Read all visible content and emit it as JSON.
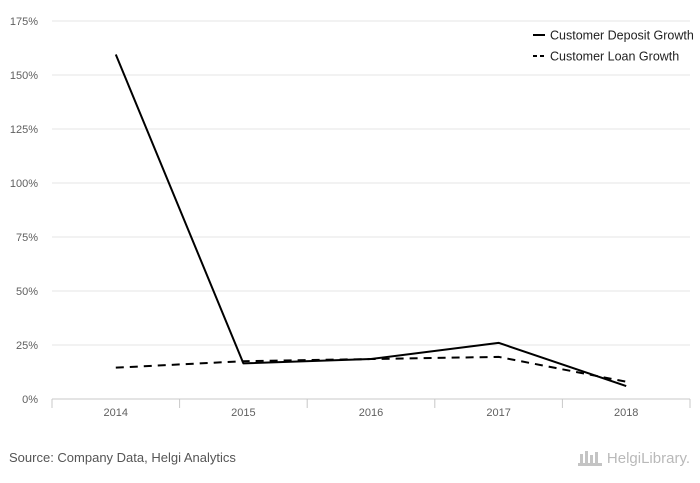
{
  "chart_data": {
    "type": "line",
    "title": "",
    "xlabel": "",
    "ylabel": "",
    "categories": [
      "2014",
      "2015",
      "2016",
      "2017",
      "2018"
    ],
    "y_ticks": [
      "0%",
      "25%",
      "50%",
      "75%",
      "100%",
      "125%",
      "150%",
      "175%"
    ],
    "ylim": [
      0,
      175
    ],
    "grid": true,
    "legend_position": "top-right",
    "series": [
      {
        "name": "Customer Deposit Growth",
        "values": [
          159.5,
          16.5,
          18.5,
          26,
          6
        ],
        "line_style": "solid",
        "color": "#000000"
      },
      {
        "name": "Customer Loan Growth",
        "values": [
          14.5,
          17.5,
          18.5,
          19.5,
          8
        ],
        "line_style": "dashed",
        "color": "#000000"
      }
    ]
  },
  "footer": {
    "source": "Source: Company Data, Helgi Analytics",
    "brand": "HelgiLibrary.",
    "brand_icon": "helgi-library-logo-icon"
  }
}
